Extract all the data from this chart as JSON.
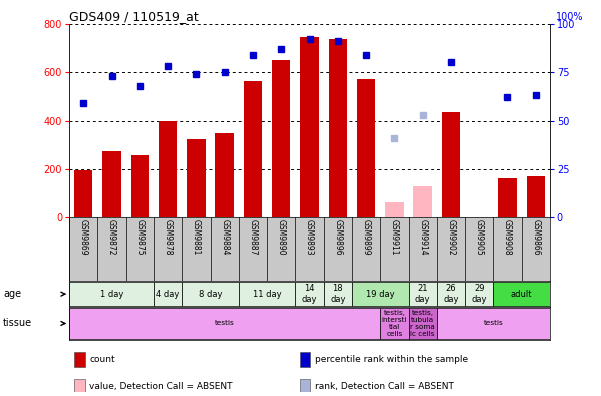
{
  "title": "GDS409 / 110519_at",
  "samples": [
    "GSM9869",
    "GSM9872",
    "GSM9875",
    "GSM9878",
    "GSM9881",
    "GSM9884",
    "GSM9887",
    "GSM9890",
    "GSM9893",
    "GSM9896",
    "GSM9899",
    "GSM9911",
    "GSM9914",
    "GSM9902",
    "GSM9905",
    "GSM9908",
    "GSM9866"
  ],
  "bar_values": [
    195,
    275,
    258,
    400,
    325,
    348,
    562,
    650,
    745,
    738,
    572,
    0,
    0,
    435,
    0,
    162,
    172
  ],
  "bar_color": "#cc0000",
  "absent_bar_values": [
    0,
    0,
    0,
    0,
    0,
    0,
    0,
    0,
    0,
    0,
    0,
    62,
    128,
    0,
    0,
    0,
    0
  ],
  "absent_bar_color": "#ffb6c1",
  "rank_values": [
    59,
    73,
    68,
    78,
    74,
    75,
    84,
    87,
    92,
    91,
    84,
    0,
    0,
    80,
    0,
    62,
    63
  ],
  "rank_absent_values": [
    0,
    0,
    0,
    0,
    0,
    0,
    0,
    0,
    0,
    0,
    0,
    41,
    53,
    0,
    0,
    0,
    0
  ],
  "rank_color": "#0000cc",
  "rank_absent_color": "#aab4d8",
  "ylim_left": [
    0,
    800
  ],
  "ylim_right": [
    0,
    100
  ],
  "yticks_left": [
    0,
    200,
    400,
    600,
    800
  ],
  "yticks_right": [
    0,
    25,
    50,
    75,
    100
  ],
  "age_groups": [
    {
      "label": "1 day",
      "start": 0,
      "end": 2,
      "color": "#e0f0e0"
    },
    {
      "label": "4 day",
      "start": 3,
      "end": 3,
      "color": "#e0f0e0"
    },
    {
      "label": "8 day",
      "start": 4,
      "end": 5,
      "color": "#e0f0e0"
    },
    {
      "label": "11 day",
      "start": 6,
      "end": 7,
      "color": "#e0f0e0"
    },
    {
      "label": "14\nday",
      "start": 8,
      "end": 8,
      "color": "#e0f0e0"
    },
    {
      "label": "18\nday",
      "start": 9,
      "end": 9,
      "color": "#e0f0e0"
    },
    {
      "label": "19 day",
      "start": 10,
      "end": 11,
      "color": "#b0e8b0"
    },
    {
      "label": "21\nday",
      "start": 12,
      "end": 12,
      "color": "#e0f0e0"
    },
    {
      "label": "26\nday",
      "start": 13,
      "end": 13,
      "color": "#e0f0e0"
    },
    {
      "label": "29\nday",
      "start": 14,
      "end": 14,
      "color": "#e0f0e0"
    },
    {
      "label": "adult",
      "start": 15,
      "end": 16,
      "color": "#44dd44"
    }
  ],
  "tissue_groups": [
    {
      "label": "testis",
      "start": 0,
      "end": 10,
      "color": "#f0a0f0"
    },
    {
      "label": "testis,\nintersti\ntial\ncells",
      "start": 11,
      "end": 11,
      "color": "#e080e0"
    },
    {
      "label": "testis,\ntubula\nr soma\nic cells",
      "start": 12,
      "end": 12,
      "color": "#cc66cc"
    },
    {
      "label": "testis",
      "start": 13,
      "end": 16,
      "color": "#f0a0f0"
    }
  ],
  "bg_color": "#ffffff",
  "names_bg": "#c8c8c8",
  "legend_items": [
    {
      "label": "count",
      "color": "#cc0000"
    },
    {
      "label": "percentile rank within the sample",
      "color": "#0000cc"
    },
    {
      "label": "value, Detection Call = ABSENT",
      "color": "#ffb6c1"
    },
    {
      "label": "rank, Detection Call = ABSENT",
      "color": "#aab4d8"
    }
  ]
}
